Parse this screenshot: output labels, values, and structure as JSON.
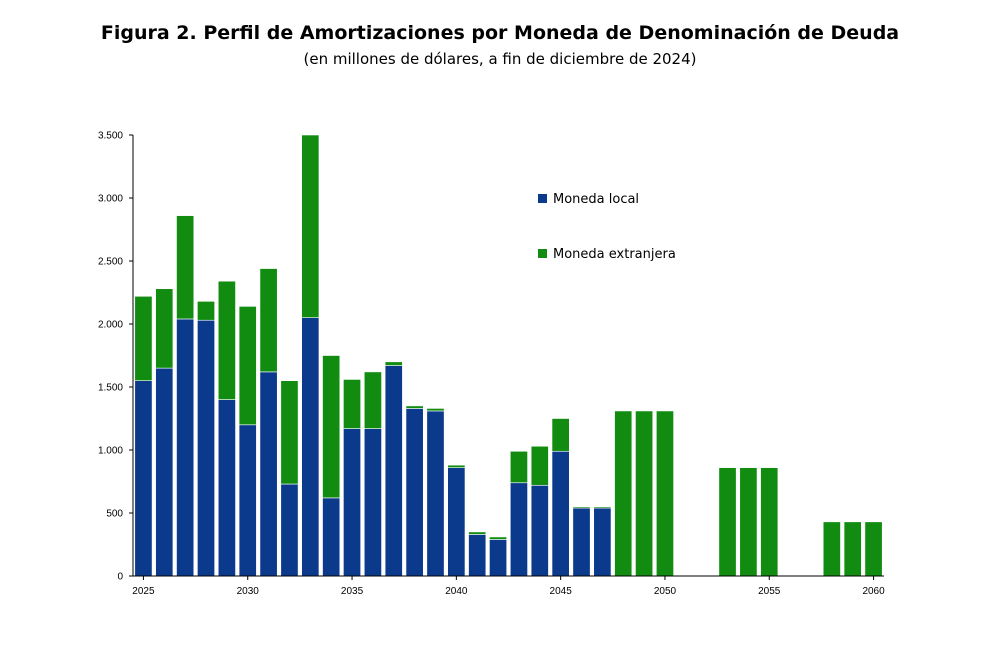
{
  "title": "Figura 2. Perfil de Amortizaciones por Moneda de Denominación de Deuda",
  "subtitle": "(en millones de dólares, a fin de diciembre de 2024)",
  "chart_data": {
    "type": "bar",
    "stacked": true,
    "x": [
      2025,
      2026,
      2027,
      2028,
      2029,
      2030,
      2031,
      2032,
      2033,
      2034,
      2035,
      2036,
      2037,
      2038,
      2039,
      2040,
      2041,
      2042,
      2043,
      2044,
      2045,
      2046,
      2047,
      2048,
      2049,
      2050,
      2051,
      2052,
      2053,
      2054,
      2055,
      2056,
      2057,
      2058,
      2059,
      2060
    ],
    "x_tick_labels": [
      "2025",
      "2030",
      "2035",
      "2040",
      "2045",
      "2050",
      "2055",
      "2060"
    ],
    "x_tick_values": [
      2025,
      2030,
      2035,
      2040,
      2045,
      2050,
      2055,
      2060
    ],
    "series": [
      {
        "name": "Moneda local",
        "color": "#0b3a8c",
        "values": [
          1550,
          1650,
          2040,
          2030,
          1400,
          1200,
          1620,
          730,
          2050,
          620,
          1170,
          1170,
          1670,
          1330,
          1310,
          860,
          330,
          290,
          740,
          720,
          990,
          540,
          540,
          0,
          0,
          0,
          0,
          0,
          0,
          0,
          0,
          0,
          0,
          0,
          0,
          0
        ]
      },
      {
        "name": "Moneda extranjera",
        "color": "#118c11",
        "values": [
          670,
          630,
          820,
          150,
          940,
          940,
          820,
          820,
          1450,
          1130,
          390,
          450,
          30,
          20,
          20,
          20,
          20,
          20,
          250,
          310,
          260,
          10,
          10,
          1310,
          1310,
          1310,
          0,
          0,
          860,
          860,
          860,
          0,
          0,
          430,
          430,
          430
        ]
      }
    ],
    "y_ticks": [
      0,
      500,
      1000,
      1500,
      2000,
      2500,
      3000,
      3500
    ],
    "y_tick_labels": [
      "0",
      "500",
      "1.000",
      "1.500",
      "2.000",
      "2.500",
      "3.000",
      "3.500"
    ],
    "ylim": [
      0,
      3500
    ],
    "xlim": [
      2024.5,
      2060.5
    ],
    "legend_position": "top-right",
    "grid": false
  }
}
